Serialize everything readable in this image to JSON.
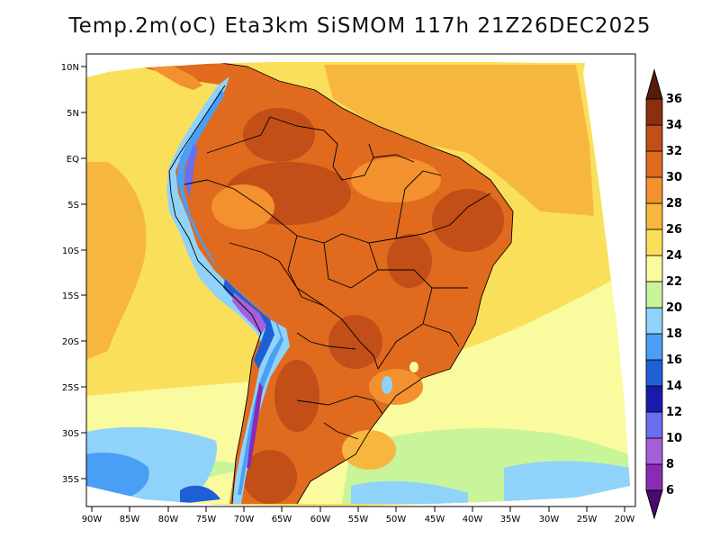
{
  "title": "Temp.2m(oC) Eta3km SiSMOM 117h 21Z26DEC2025",
  "map": {
    "variable": "2m temperature",
    "units": "oC",
    "model": "Eta3km",
    "lat_labels": [
      "10N",
      "5N",
      "EQ",
      "5S",
      "10S",
      "15S",
      "20S",
      "25S",
      "30S",
      "35S"
    ],
    "lon_labels": [
      "90W",
      "85W",
      "80W",
      "75W",
      "70W",
      "65W",
      "60W",
      "55W",
      "50W",
      "45W",
      "40W",
      "35W",
      "30W",
      "25W",
      "20W"
    ]
  },
  "colorbar": {
    "levels": [
      "6",
      "8",
      "10",
      "12",
      "14",
      "16",
      "18",
      "20",
      "22",
      "24",
      "26",
      "28",
      "30",
      "32",
      "34",
      "36"
    ],
    "colors": [
      "#4a0a6e",
      "#8a2bb5",
      "#a65fd8",
      "#6a6ef0",
      "#1a1aaa",
      "#1f5fd6",
      "#4a9ef5",
      "#8fd3fb",
      "#c8f59a",
      "#fafa9e",
      "#fae05a",
      "#f7b73e",
      "#f2912e",
      "#e06a1e",
      "#c24e18",
      "#8a2f10",
      "#5a1a08"
    ],
    "arrow_top_color": "#5a1a08",
    "arrow_bottom_color": "#4a0a6e"
  }
}
